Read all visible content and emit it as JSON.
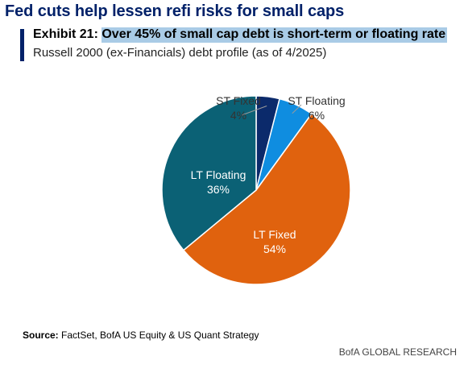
{
  "headline": "Fed cuts help lessen refi risks for small caps",
  "exhibit": {
    "number": "Exhibit 21:",
    "title": "Over 45% of small cap debt is short-term or floating rate",
    "subtitle": "Russell 2000 (ex-Financials) debt profile (as of 4/2025)"
  },
  "colors": {
    "headline": "#012169",
    "highlight": "#a9cbe6"
  },
  "chart_data": {
    "type": "pie",
    "title": "",
    "slices": [
      {
        "label": "ST Fixed",
        "value": 4,
        "value_label": "4%",
        "color": "#0b2a6b",
        "label_position": "outside",
        "label_color": "#333333"
      },
      {
        "label": "ST Floating",
        "value": 6,
        "value_label": "6%",
        "color": "#0f8de0",
        "label_position": "outside",
        "label_color": "#333333"
      },
      {
        "label": "LT Fixed",
        "value": 54,
        "value_label": "54%",
        "color": "#e0620e",
        "label_position": "inside",
        "label_color": "#ffffff"
      },
      {
        "label": "LT Floating",
        "value": 36,
        "value_label": "36%",
        "color": "#0b6175",
        "label_position": "inside",
        "label_color": "#ffffff"
      }
    ]
  },
  "footer": {
    "source_label": "Source:",
    "source_text": "FactSet, BofA US Equity & US Quant Strategy",
    "brand": "BofA GLOBAL RESEARCH"
  }
}
